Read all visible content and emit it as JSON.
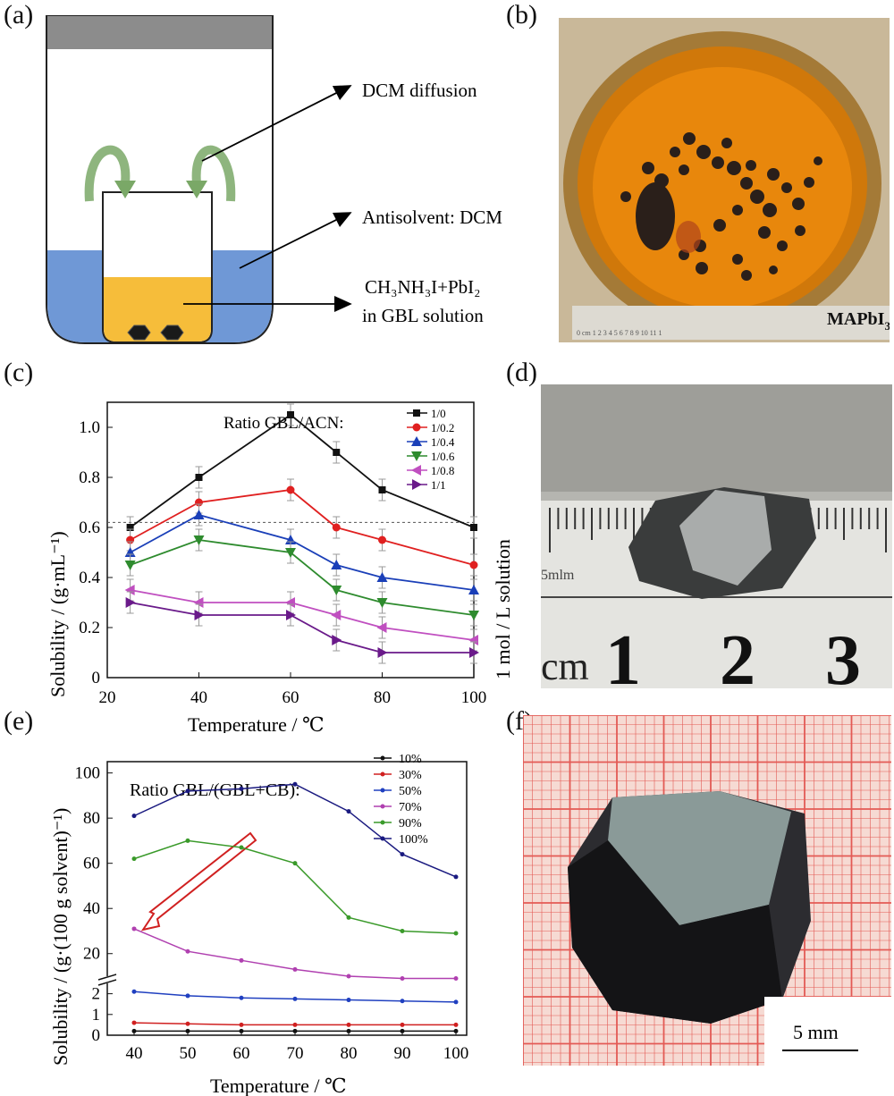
{
  "panels": {
    "a": "(a)",
    "b": "(b)",
    "c": "(c)",
    "d": "(d)",
    "e": "(e)",
    "f": "(f)"
  },
  "diagram_a": {
    "label_diffusion": "DCM diffusion",
    "label_antisolvent": "Antisolvent: DCM",
    "label_solution_line1": "CH₃NH₃I+PbI₂",
    "label_solution_line2": "in GBL solution",
    "colors": {
      "solvent_blue": "#6f98d6",
      "solution_yellow": "#f6bd3a",
      "lid": "#8c8c8c",
      "arrow_green": "#7aa867"
    }
  },
  "photo_b": {
    "label": "MAPbI",
    "label_sub": "3",
    "ruler_text": "0 cm 1 2 3 4 5 6 7 8 9 10 11 1"
  },
  "photo_d": {
    "side_label": "1 mol / L solution",
    "ruler_cm": "cm",
    "ruler_mm": "5mlm",
    "n1": "1",
    "n2": "2",
    "n3": "3"
  },
  "photo_f": {
    "scale_label": "5 mm"
  },
  "chart_data": [
    {
      "type": "line",
      "panel": "c",
      "xlabel": "Temperature / ℃",
      "ylabel": "Solubility / (g·mL⁻¹)",
      "xlim": [
        20,
        100
      ],
      "ylim": [
        0,
        1.1
      ],
      "xticks": [
        "20",
        "40",
        "60",
        "80",
        "100"
      ],
      "yticks": [
        "0",
        "0.2",
        "0.4",
        "0.6",
        "0.8",
        "1.0"
      ],
      "legend_title": "Ratio GBL/ACN:",
      "reference_line": 0.62,
      "x": [
        25,
        40,
        60,
        70,
        80,
        100
      ],
      "series": [
        {
          "name": "1/0",
          "color": "#111111",
          "marker": "square",
          "values": [
            0.6,
            0.8,
            1.05,
            0.9,
            0.75,
            0.6
          ]
        },
        {
          "name": "1/0.2",
          "color": "#e02020",
          "marker": "circle",
          "values": [
            0.55,
            0.7,
            0.75,
            0.6,
            0.55,
            0.45
          ]
        },
        {
          "name": "1/0.4",
          "color": "#1a3fb8",
          "marker": "tri-up",
          "values": [
            0.5,
            0.65,
            0.55,
            0.45,
            0.4,
            0.35
          ]
        },
        {
          "name": "1/0.6",
          "color": "#2e8b2e",
          "marker": "tri-down",
          "values": [
            0.45,
            0.55,
            0.5,
            0.35,
            0.3,
            0.25
          ]
        },
        {
          "name": "1/0.8",
          "color": "#c04fc0",
          "marker": "tri-left",
          "values": [
            0.35,
            0.3,
            0.3,
            0.25,
            0.2,
            0.15
          ]
        },
        {
          "name": "1/1",
          "color": "#6a1a8a",
          "marker": "tri-right",
          "values": [
            0.3,
            0.25,
            0.25,
            0.15,
            0.1,
            0.1
          ]
        }
      ]
    },
    {
      "type": "line",
      "panel": "e",
      "xlabel": "Temperature / ℃",
      "ylabel": "Solubility / (g·(100 g solvent)⁻¹)",
      "xlim": [
        35,
        102
      ],
      "broken_axis": true,
      "ylim_lower": [
        0,
        2.5
      ],
      "ylim_upper": [
        10,
        105
      ],
      "xticks": [
        "40",
        "50",
        "60",
        "70",
        "80",
        "90",
        "100"
      ],
      "yticks_lower": [
        "0",
        "1",
        "2"
      ],
      "yticks_upper": [
        "20",
        "40",
        "60",
        "80",
        "100"
      ],
      "legend_title": "Ratio GBL/(GBL+CB):",
      "x": [
        40,
        50,
        60,
        70,
        80,
        90,
        100
      ],
      "series": [
        {
          "name": "10%",
          "color": "#111111",
          "values": [
            0.2,
            0.2,
            0.2,
            0.2,
            0.2,
            0.2,
            0.2
          ]
        },
        {
          "name": "30%",
          "color": "#d02020",
          "values": [
            0.6,
            0.55,
            0.5,
            0.5,
            0.5,
            0.5,
            0.5
          ]
        },
        {
          "name": "50%",
          "color": "#2040c0",
          "values": [
            2.1,
            1.9,
            1.8,
            1.75,
            1.7,
            1.65,
            1.6
          ]
        },
        {
          "name": "70%",
          "color": "#b040b0",
          "values": [
            31,
            21,
            17,
            13,
            10,
            9,
            9
          ]
        },
        {
          "name": "90%",
          "color": "#3a9a2a",
          "values": [
            62,
            70,
            67,
            60,
            36,
            30,
            29
          ]
        },
        {
          "name": "100%",
          "color": "#1a1a80",
          "values": [
            81,
            92,
            93,
            95,
            83,
            64,
            54
          ]
        }
      ]
    }
  ]
}
